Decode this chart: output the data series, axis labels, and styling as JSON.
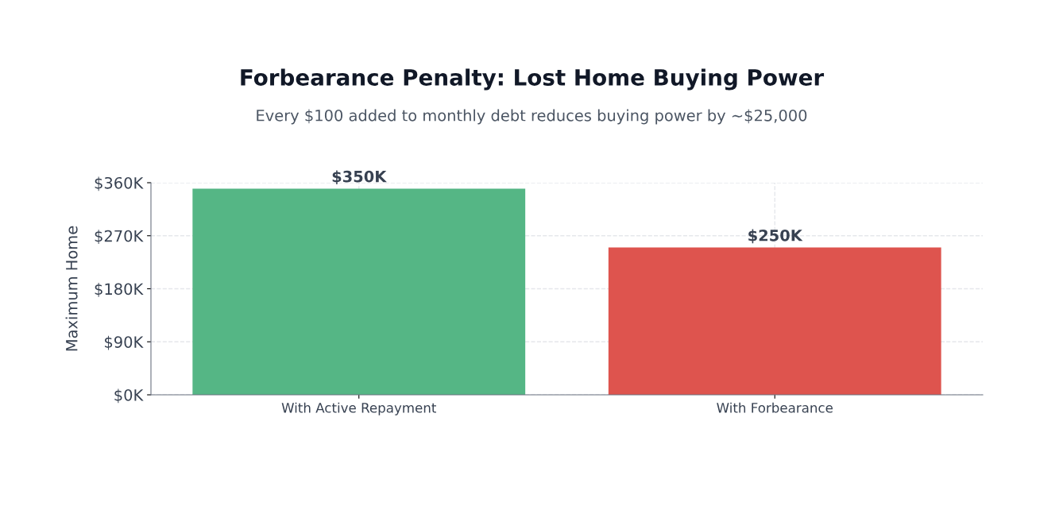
{
  "chart_data": {
    "type": "bar",
    "title": "Forbearance Penalty: Lost Home Buying Power",
    "subtitle": "Every $100 added to monthly debt reduces buying power by ~$25,000",
    "ylabel": "Maximum Home",
    "categories": [
      "With Active Repayment",
      "With Forbearance"
    ],
    "values": [
      350,
      250
    ],
    "colors": [
      "#55b685",
      "#de544e"
    ],
    "value_labels": [
      "$350K",
      "$250K"
    ],
    "ylim": [
      0,
      360
    ],
    "yticks": [
      {
        "value": 0,
        "label": "$0K"
      },
      {
        "value": 90,
        "label": "$90K"
      },
      {
        "value": 180,
        "label": "$180K"
      },
      {
        "value": 270,
        "label": "$270K"
      },
      {
        "value": 360,
        "label": "$360K"
      }
    ],
    "grid": true
  }
}
